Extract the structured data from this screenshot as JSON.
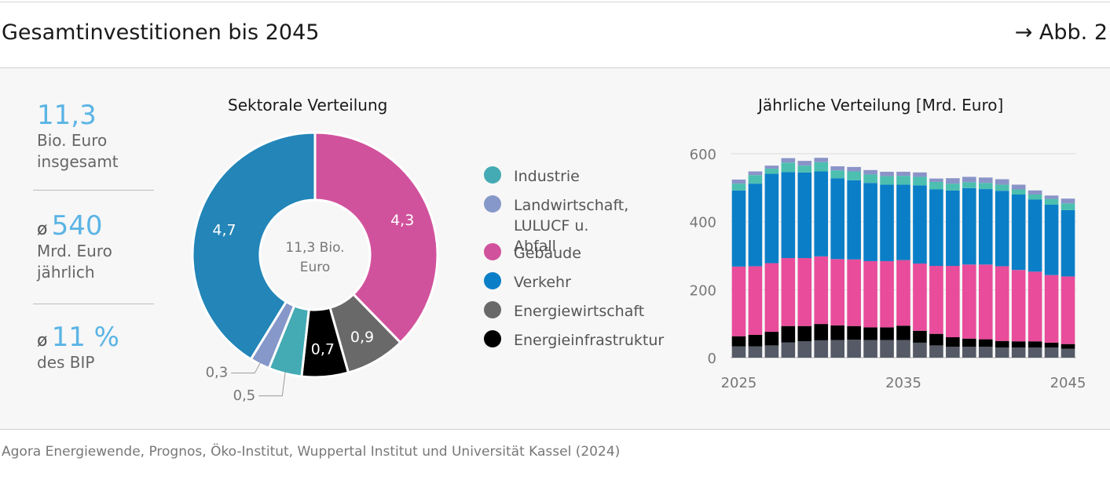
{
  "header": {
    "title": "Gesamtinvestitionen bis 2045",
    "figure_ref": "→ Abb. 2"
  },
  "kpis": {
    "total": {
      "value": "11,3",
      "line1": "Bio. Euro",
      "line2": "insgesamt"
    },
    "annual": {
      "prefix": "ø",
      "value": "540",
      "line1": "Mrd. Euro",
      "line2": "jährlich"
    },
    "gdp": {
      "prefix": "ø",
      "value": "11 %",
      "line1": "des BIP"
    }
  },
  "colors": {
    "Industrie": "#44aab3",
    "Landwirtschaft": "#8698c9",
    "Gebaeude": "#d1529c",
    "Verkehr": "#2385b8",
    "Verkehr_bar": "#0a7fc7",
    "Gebaeude_bar": "#e84c9a",
    "Energiewirtschaft": "#696969",
    "Energieinfrastruktur": "#000000",
    "Landwirtschaft_bar": "#8a94c8",
    "Industrie_bar": "#4cbfb0",
    "Energiewirtschaft_bar": "#555a66"
  },
  "legend": [
    {
      "label": "Industrie",
      "color": "#44aab3"
    },
    {
      "label": "Landwirtschaft,\nLULUCF u. Abfall",
      "color": "#8698c9"
    },
    {
      "label": "Gebäude",
      "color": "#d1529c"
    },
    {
      "label": "Verkehr",
      "color": "#0a7fc7"
    },
    {
      "label": "Energiewirtschaft",
      "color": "#696969"
    },
    {
      "label": "Energieinfrastruktur",
      "color": "#000000"
    }
  ],
  "chart_data": [
    {
      "type": "pie",
      "title": "Sektorale Verteilung",
      "center_label": [
        "11,3 Bio.",
        "Euro"
      ],
      "unit": "Bio. Euro",
      "slices": [
        {
          "name": "Gebäude",
          "value": 4.3,
          "label": "4,3",
          "color": "#d1529c"
        },
        {
          "name": "Energiewirtschaft",
          "value": 0.9,
          "label": "0,9",
          "color": "#696969"
        },
        {
          "name": "Energieinfrastruktur",
          "value": 0.7,
          "label": "0,7",
          "color": "#000000"
        },
        {
          "name": "Industrie",
          "value": 0.5,
          "label": "0,5",
          "color": "#44aab3"
        },
        {
          "name": "Landwirtschaft, LULUCF u. Abfall",
          "value": 0.3,
          "label": "0,3",
          "color": "#8698c9"
        },
        {
          "name": "Verkehr",
          "value": 4.7,
          "label": "4,7",
          "color": "#2385b8"
        }
      ]
    },
    {
      "type": "bar",
      "stacked": true,
      "title": "Jährliche Verteilung [Mrd. Euro]",
      "ylim": [
        0,
        600
      ],
      "yticks": [
        0,
        200,
        400,
        600
      ],
      "ytick_labels": [
        "0",
        "200",
        "400",
        "600"
      ],
      "xtick_labels": [
        {
          "year": 2025,
          "label": "2025"
        },
        {
          "year": 2035,
          "label": "2035"
        },
        {
          "year": 2045,
          "label": "2045"
        }
      ],
      "categories": [
        2025,
        2026,
        2027,
        2028,
        2029,
        2030,
        2031,
        2032,
        2033,
        2034,
        2035,
        2036,
        2037,
        2038,
        2039,
        2040,
        2041,
        2042,
        2043,
        2044,
        2045
      ],
      "series": [
        {
          "name": "Energiewirtschaft",
          "color": "#555a66",
          "values": [
            33,
            33,
            36,
            45,
            48,
            51,
            52,
            53,
            52,
            52,
            52,
            44,
            36,
            32,
            32,
            32,
            30,
            30,
            30,
            30,
            26
          ]
        },
        {
          "name": "Energieinfrastruktur",
          "color": "#000000",
          "values": [
            30,
            34,
            40,
            48,
            45,
            48,
            43,
            40,
            37,
            37,
            42,
            35,
            34,
            28,
            24,
            22,
            19,
            18,
            18,
            14,
            14
          ]
        },
        {
          "name": "Gebäude",
          "color": "#e84c9a",
          "values": [
            205,
            202,
            202,
            200,
            200,
            199,
            195,
            196,
            195,
            195,
            193,
            198,
            200,
            210,
            218,
            220,
            220,
            210,
            205,
            199,
            199
          ]
        },
        {
          "name": "Verkehr",
          "color": "#0a7fc7",
          "values": [
            224,
            243,
            263,
            253,
            252,
            250,
            238,
            233,
            230,
            225,
            222,
            230,
            225,
            222,
            225,
            222,
            222,
            222,
            212,
            207,
            195
          ]
        },
        {
          "name": "Industrie",
          "color": "#4cbfb0",
          "values": [
            20,
            25,
            15,
            28,
            20,
            27,
            23,
            26,
            25,
            25,
            26,
            25,
            22,
            20,
            17,
            18,
            18,
            15,
            15,
            17,
            20
          ]
        },
        {
          "name": "Landwirtschaft, LULUCF u. Abfall",
          "color": "#8a94c8",
          "values": [
            12,
            11,
            9,
            13,
            14,
            13,
            12,
            13,
            13,
            13,
            12,
            13,
            10,
            16,
            16,
            16,
            16,
            14,
            12,
            10,
            14
          ]
        }
      ]
    }
  ],
  "source": "Agora Energiewende, Prognos, Öko-Institut, Wuppertal Institut und Universität Kassel (2024)"
}
